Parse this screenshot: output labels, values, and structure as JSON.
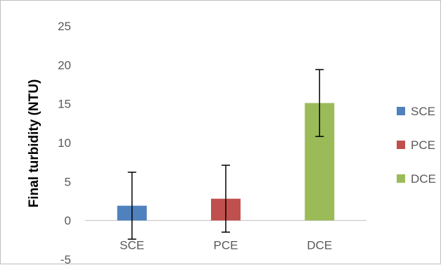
{
  "chart_data": {
    "type": "bar",
    "categories": [
      "SCE",
      "PCE",
      "DCE"
    ],
    "series": [
      {
        "name": "SCE",
        "color": "#4f81bd"
      },
      {
        "name": "PCE",
        "color": "#c0504d"
      },
      {
        "name": "DCE",
        "color": "#9bbb59"
      }
    ],
    "values": [
      1.9,
      2.8,
      15.1
    ],
    "error_bars": [
      4.3,
      4.3,
      4.3
    ],
    "title": "",
    "xlabel": "",
    "ylabel": "Final turbidity (NTU)",
    "ylim": [
      -5,
      25
    ],
    "yticks": [
      -5,
      0,
      5,
      10,
      15,
      20,
      25
    ],
    "grid": false,
    "legend": "right"
  }
}
